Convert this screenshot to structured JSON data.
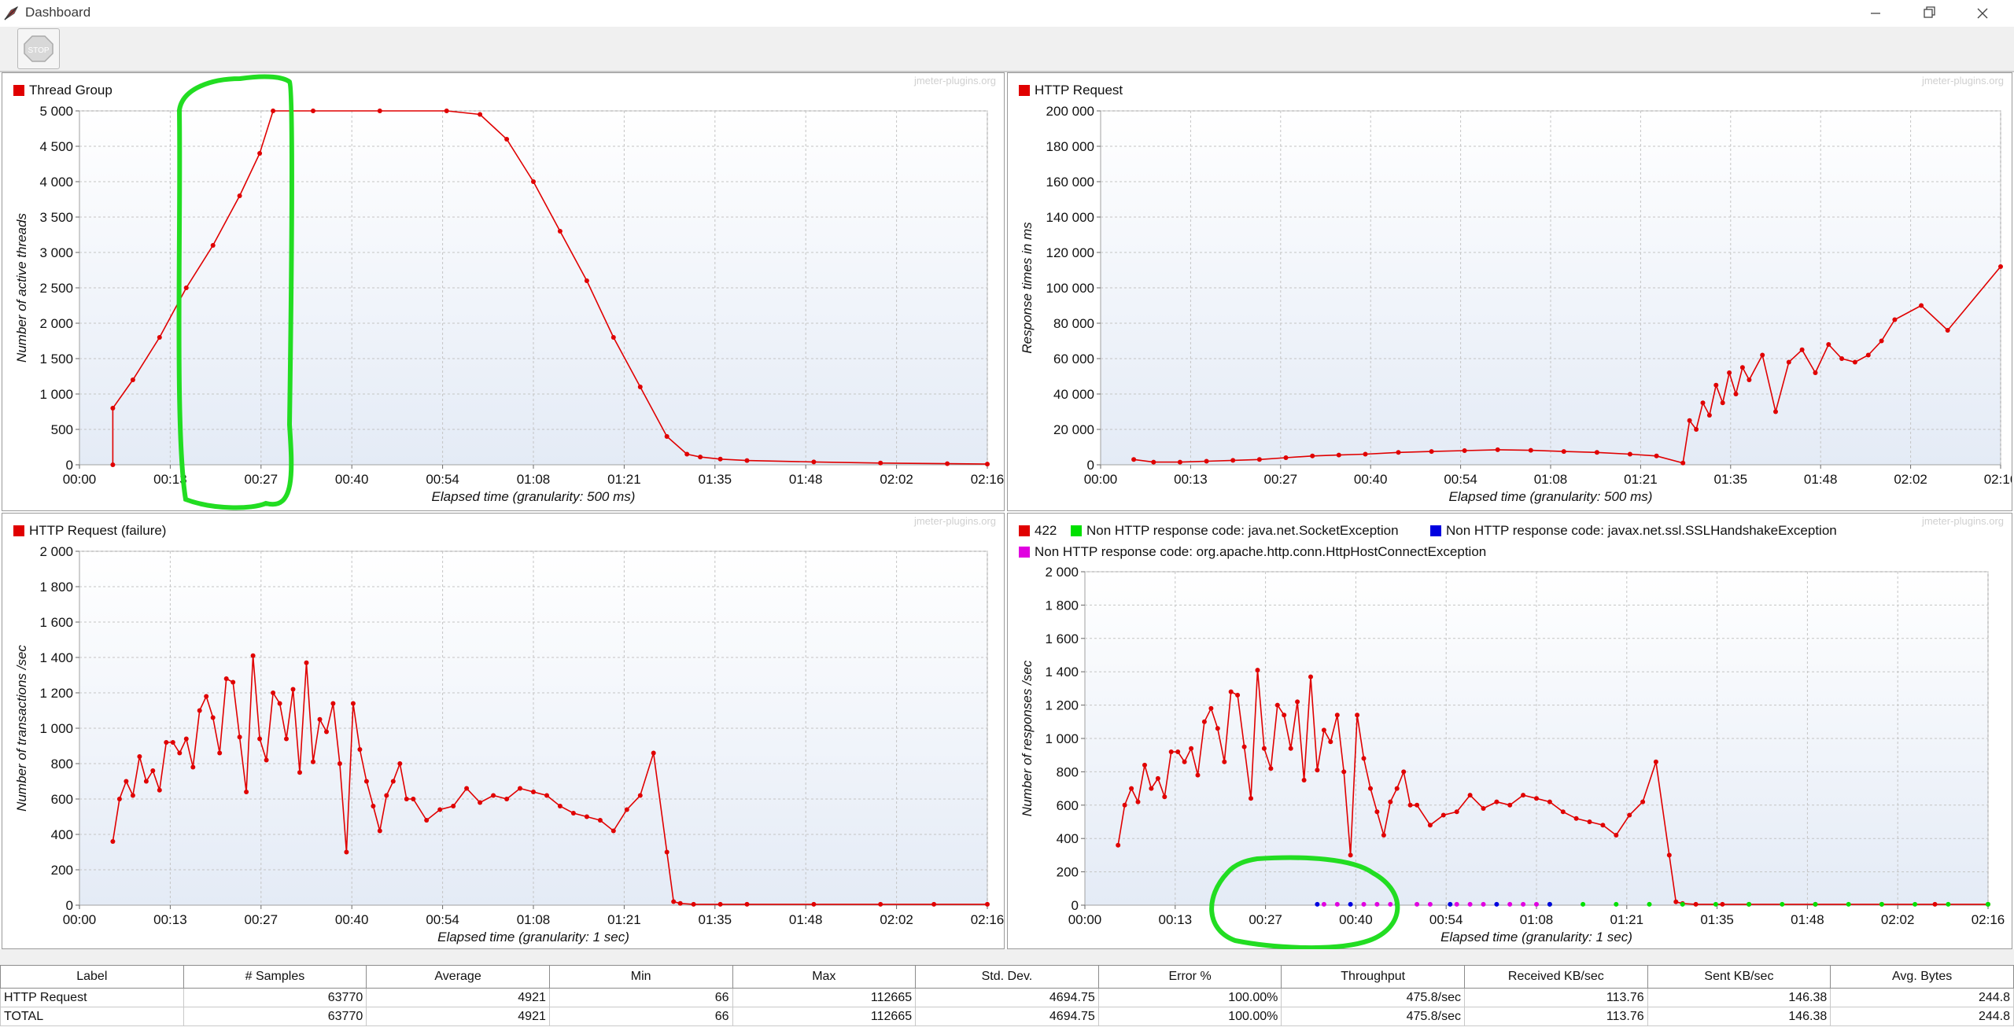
{
  "window": {
    "title": "Dashboard",
    "minimize_icon": "minimize-icon",
    "maximize_icon": "restore-icon",
    "close_icon": "close-icon"
  },
  "toolbar": {
    "stop_icon": "stop-icon",
    "stop_label": "STOP"
  },
  "watermark": "jmeter-plugins.org",
  "colors": {
    "series_red": "#e00000",
    "series_green": "#00e000",
    "series_blue": "#0000e0",
    "series_magenta": "#e000e0",
    "annotation_green": "#22dd22"
  },
  "chart_data": [
    {
      "type": "line",
      "title": "Thread Group",
      "legend": [
        "Thread Group"
      ],
      "xlabel": "Elapsed time (granularity: 500 ms)",
      "ylabel": "Number of active threads",
      "ylim": [
        0,
        5000
      ],
      "yticks": [
        "0",
        "500",
        "1 000",
        "1 500",
        "2 000",
        "2 500",
        "3 000",
        "3 500",
        "4 000",
        "4 500",
        "5 000"
      ],
      "xticks": [
        "00:00",
        "00:13",
        "00:27",
        "00:40",
        "00:54",
        "01:08",
        "01:21",
        "01:35",
        "01:48",
        "02:02",
        "02:16"
      ],
      "xlim_sec": [
        0,
        136
      ],
      "series": [
        {
          "name": "Thread Group",
          "color": "#e00000",
          "x": [
            5,
            5,
            8,
            12,
            16,
            20,
            24,
            27,
            29,
            35,
            45,
            55,
            60,
            64,
            68,
            72,
            76,
            80,
            84,
            88,
            91,
            93,
            96,
            100,
            110,
            120,
            130,
            136
          ],
          "y": [
            0,
            800,
            1200,
            1800,
            2500,
            3100,
            3800,
            4400,
            5000,
            5000,
            5000,
            5000,
            4950,
            4600,
            4000,
            3300,
            2600,
            1800,
            1100,
            400,
            150,
            110,
            80,
            60,
            40,
            25,
            15,
            10
          ]
        }
      ],
      "grid": true
    },
    {
      "type": "line",
      "title": "HTTP Request",
      "legend": [
        "HTTP Request"
      ],
      "xlabel": "Elapsed time (granularity: 500 ms)",
      "ylabel": "Response times in ms",
      "ylim": [
        0,
        200000
      ],
      "yticks": [
        "0",
        "20 000",
        "40 000",
        "60 000",
        "80 000",
        "100 000",
        "120 000",
        "140 000",
        "160 000",
        "180 000",
        "200 000"
      ],
      "xticks": [
        "00:00",
        "00:13",
        "00:27",
        "00:40",
        "00:54",
        "01:08",
        "01:21",
        "01:35",
        "01:48",
        "02:02",
        "02:16"
      ],
      "xlim_sec": [
        0,
        136
      ],
      "series": [
        {
          "name": "HTTP Request",
          "color": "#e00000",
          "x": [
            5,
            8,
            12,
            16,
            20,
            24,
            28,
            32,
            36,
            40,
            45,
            50,
            55,
            60,
            65,
            70,
            75,
            80,
            84,
            88,
            89,
            90,
            91,
            92,
            93,
            94,
            95,
            96,
            97,
            98,
            100,
            102,
            104,
            106,
            108,
            110,
            112,
            114,
            116,
            118,
            120,
            124,
            128,
            136
          ],
          "y": [
            3000,
            1500,
            1500,
            2000,
            2500,
            3000,
            4000,
            5000,
            5500,
            6000,
            7000,
            7500,
            8000,
            8500,
            8200,
            7500,
            7000,
            6000,
            5000,
            1000,
            25000,
            20000,
            35000,
            28000,
            45000,
            35000,
            52000,
            40000,
            55000,
            48000,
            62000,
            30000,
            58000,
            65000,
            52000,
            68000,
            60000,
            58000,
            62000,
            70000,
            82000,
            90000,
            76000,
            112000
          ]
        }
      ],
      "grid": true
    },
    {
      "type": "line",
      "title": "HTTP Request (failure)",
      "legend": [
        "HTTP Request (failure)"
      ],
      "xlabel": "Elapsed time (granularity: 1 sec)",
      "ylabel": "Number of transactions /sec",
      "ylim": [
        0,
        2000
      ],
      "yticks": [
        "0",
        "200",
        "400",
        "600",
        "800",
        "1 000",
        "1 200",
        "1 400",
        "1 600",
        "1 800",
        "2 000"
      ],
      "xticks": [
        "00:00",
        "00:13",
        "00:27",
        "00:40",
        "00:54",
        "01:08",
        "01:21",
        "01:35",
        "01:48",
        "02:02",
        "02:16"
      ],
      "xlim_sec": [
        0,
        136
      ],
      "series": [
        {
          "name": "HTTP Request (failure)",
          "color": "#e00000",
          "x": [
            5,
            6,
            7,
            8,
            9,
            10,
            11,
            12,
            13,
            14,
            15,
            16,
            17,
            18,
            19,
            20,
            21,
            22,
            23,
            24,
            25,
            26,
            27,
            28,
            29,
            30,
            31,
            32,
            33,
            34,
            35,
            36,
            37,
            38,
            39,
            40,
            41,
            42,
            43,
            44,
            45,
            46,
            47,
            48,
            49,
            50,
            52,
            54,
            56,
            58,
            60,
            62,
            64,
            66,
            68,
            70,
            72,
            74,
            76,
            78,
            80,
            82,
            84,
            86,
            88,
            89,
            90,
            92,
            96,
            100,
            110,
            120,
            128,
            136
          ],
          "y": [
            360,
            600,
            700,
            620,
            840,
            700,
            760,
            650,
            920,
            920,
            860,
            940,
            780,
            1100,
            1180,
            1060,
            860,
            1280,
            1260,
            950,
            640,
            1410,
            940,
            820,
            1200,
            1140,
            940,
            1220,
            750,
            1370,
            810,
            1050,
            980,
            1140,
            800,
            300,
            1140,
            880,
            700,
            560,
            420,
            620,
            700,
            800,
            600,
            600,
            480,
            540,
            560,
            660,
            580,
            620,
            600,
            660,
            640,
            620,
            560,
            520,
            500,
            480,
            420,
            540,
            620,
            860,
            300,
            20,
            10,
            5,
            5,
            5,
            5,
            5,
            5,
            5
          ]
        }
      ],
      "grid": true
    },
    {
      "type": "line",
      "title": "",
      "legend": [
        "422",
        "Non HTTP response code: java.net.SocketException",
        "Non HTTP response code: javax.net.ssl.SSLHandshakeException",
        "Non HTTP response code: org.apache.http.conn.HttpHostConnectException"
      ],
      "xlabel": "Elapsed time (granularity: 1 sec)",
      "ylabel": "Number of responses /sec",
      "ylim": [
        0,
        2000
      ],
      "yticks": [
        "0",
        "200",
        "400",
        "600",
        "800",
        "1 000",
        "1 200",
        "1 400",
        "1 600",
        "1 800",
        "2 000"
      ],
      "xticks": [
        "00:00",
        "00:13",
        "00:27",
        "00:40",
        "00:54",
        "01:08",
        "01:21",
        "01:35",
        "01:48",
        "02:02",
        "02:16"
      ],
      "xlim_sec": [
        0,
        136
      ],
      "series": [
        {
          "name": "422",
          "color": "#e00000",
          "x": [
            5,
            6,
            7,
            8,
            9,
            10,
            11,
            12,
            13,
            14,
            15,
            16,
            17,
            18,
            19,
            20,
            21,
            22,
            23,
            24,
            25,
            26,
            27,
            28,
            29,
            30,
            31,
            32,
            33,
            34,
            35,
            36,
            37,
            38,
            39,
            40,
            41,
            42,
            43,
            44,
            45,
            46,
            47,
            48,
            49,
            50,
            52,
            54,
            56,
            58,
            60,
            62,
            64,
            66,
            68,
            70,
            72,
            74,
            76,
            78,
            80,
            82,
            84,
            86,
            88,
            89,
            90,
            92,
            96,
            100,
            110,
            120,
            128,
            136
          ],
          "y": [
            360,
            600,
            700,
            620,
            840,
            700,
            760,
            650,
            920,
            920,
            860,
            940,
            780,
            1100,
            1180,
            1060,
            860,
            1280,
            1260,
            950,
            640,
            1410,
            940,
            820,
            1200,
            1140,
            940,
            1220,
            750,
            1370,
            810,
            1050,
            980,
            1140,
            800,
            300,
            1140,
            880,
            700,
            560,
            420,
            620,
            700,
            800,
            600,
            600,
            480,
            540,
            560,
            660,
            580,
            620,
            600,
            660,
            640,
            620,
            560,
            520,
            500,
            480,
            420,
            540,
            620,
            860,
            300,
            20,
            10,
            5,
            5,
            5,
            5,
            5,
            5,
            5
          ]
        },
        {
          "name": "Non HTTP response code: java.net.SocketException",
          "color": "#00e000",
          "x": [
            70,
            75,
            80,
            85,
            90,
            95,
            100,
            105,
            110,
            115,
            120,
            125,
            130,
            136
          ],
          "y": [
            5,
            5,
            5,
            5,
            5,
            5,
            5,
            5,
            5,
            5,
            5,
            5,
            5,
            5
          ]
        },
        {
          "name": "Non HTTP response code: javax.net.ssl.SSLHandshakeException",
          "color": "#0000e0",
          "x": [
            35,
            40,
            47,
            55,
            62,
            70
          ],
          "y": [
            5,
            5,
            5,
            5,
            5,
            5
          ]
        },
        {
          "name": "Non HTTP response code: org.apache.http.conn.HttpHostConnectException",
          "color": "#e000e0",
          "x": [
            36,
            38,
            42,
            44,
            46,
            50,
            52,
            56,
            58,
            60,
            64,
            66,
            68
          ],
          "y": [
            5,
            5,
            5,
            5,
            5,
            5,
            5,
            5,
            5,
            5,
            5,
            5,
            5
          ]
        }
      ],
      "grid": true
    }
  ],
  "table": {
    "headers": [
      "Label",
      "# Samples",
      "Average",
      "Min",
      "Max",
      "Std. Dev.",
      "Error %",
      "Throughput",
      "Received KB/sec",
      "Sent KB/sec",
      "Avg. Bytes"
    ],
    "rows": [
      [
        "HTTP Request",
        "63770",
        "4921",
        "66",
        "112665",
        "4694.75",
        "100.00%",
        "475.8/sec",
        "113.76",
        "146.38",
        "244.8"
      ],
      [
        "TOTAL",
        "63770",
        "4921",
        "66",
        "112665",
        "4694.75",
        "100.00%",
        "475.8/sec",
        "113.76",
        "146.38",
        "244.8"
      ]
    ]
  }
}
